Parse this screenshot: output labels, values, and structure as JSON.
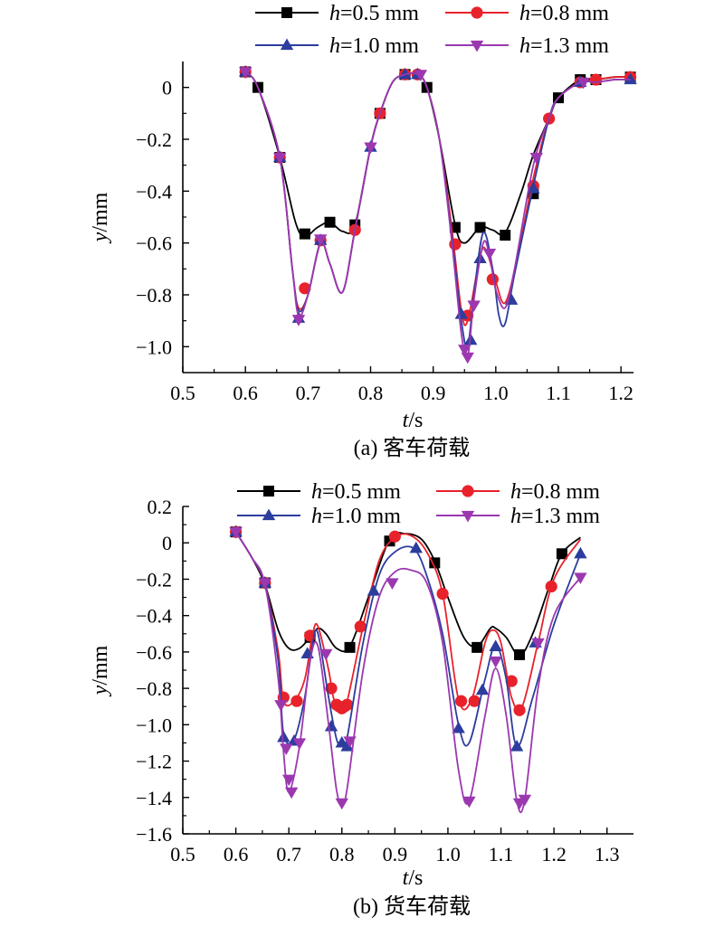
{
  "chart_data": [
    {
      "type": "line",
      "caption": "(a) 客车荷载",
      "xlabel": "t/s",
      "ylabel": "y/mm",
      "xlim": [
        0.5,
        1.22
      ],
      "ylim": [
        -1.1,
        0.1
      ],
      "x_ticks": [
        0.5,
        0.6,
        0.7,
        0.8,
        0.9,
        1.0,
        1.1,
        1.2
      ],
      "x_tick_labels": [
        "0.5",
        "0.6",
        "0.7",
        "0.8",
        "0.9",
        "1.0",
        "1.1",
        "1.2"
      ],
      "y_ticks": [
        0,
        -0.2,
        -0.4,
        -0.6,
        -0.8,
        -1.0
      ],
      "y_tick_labels": [
        "0",
        "−0.2",
        "−0.4",
        "−0.6",
        "−0.8",
        "−1.0"
      ],
      "series": [
        {
          "name": "h=0.5 mm",
          "color": "#000000",
          "marker": "square",
          "x": [
            0.6,
            0.62,
            0.655,
            0.68,
            0.695,
            0.715,
            0.735,
            0.755,
            0.775,
            0.8,
            0.815,
            0.835,
            0.855,
            0.875,
            0.89,
            0.91,
            0.935,
            0.95,
            0.975,
            0.995,
            1.015,
            1.04,
            1.06,
            1.085,
            1.1,
            1.135,
            1.16,
            1.19,
            1.215
          ],
          "y": [
            0.06,
            0.0,
            -0.27,
            -0.52,
            -0.575,
            -0.54,
            -0.52,
            -0.555,
            -0.53,
            -0.23,
            -0.1,
            0.02,
            0.05,
            0.05,
            0.0,
            -0.2,
            -0.53,
            -0.6,
            -0.54,
            -0.55,
            -0.56,
            -0.41,
            -0.26,
            -0.12,
            -0.04,
            0.03,
            0.03,
            0.04,
            0.04
          ],
          "marker_x": [
            0.6,
            0.62,
            0.655,
            0.695,
            0.735,
            0.775,
            0.815,
            0.855,
            0.89,
            0.935,
            0.975,
            1.015,
            1.06,
            1.1,
            1.135,
            1.16,
            1.215
          ],
          "marker_y": [
            0.06,
            0.0,
            -0.27,
            -0.565,
            -0.52,
            -0.53,
            -0.1,
            0.05,
            0.0,
            -0.54,
            -0.54,
            -0.57,
            -0.41,
            -0.04,
            0.03,
            0.03,
            0.04
          ]
        },
        {
          "name": "h=0.8 mm",
          "color": "#e8222b",
          "marker": "circle",
          "x": [
            0.6,
            0.62,
            0.655,
            0.675,
            0.685,
            0.7,
            0.72,
            0.735,
            0.755,
            0.775,
            0.8,
            0.815,
            0.835,
            0.855,
            0.875,
            0.89,
            0.91,
            0.93,
            0.945,
            0.955,
            0.975,
            0.985,
            1.0,
            1.015,
            1.035,
            1.06,
            1.085,
            1.1,
            1.135,
            1.16,
            1.19,
            1.215
          ],
          "y": [
            0.06,
            0.0,
            -0.27,
            -0.7,
            -0.85,
            -0.8,
            -0.6,
            -0.68,
            -0.79,
            -0.55,
            -0.23,
            -0.1,
            0.02,
            0.05,
            0.05,
            0.0,
            -0.2,
            -0.55,
            -0.86,
            -0.9,
            -0.65,
            -0.63,
            -0.75,
            -0.83,
            -0.65,
            -0.35,
            -0.12,
            -0.04,
            0.02,
            0.03,
            0.04,
            0.04
          ],
          "marker_x": [
            0.6,
            0.655,
            0.695,
            0.72,
            0.775,
            0.815,
            0.855,
            0.875,
            0.935,
            0.955,
            0.995,
            1.06,
            1.085,
            1.135,
            1.16,
            1.215
          ],
          "marker_y": [
            0.06,
            -0.27,
            -0.775,
            -0.59,
            -0.55,
            -0.1,
            0.05,
            0.05,
            -0.605,
            -0.88,
            -0.74,
            -0.38,
            -0.12,
            0.02,
            0.03,
            0.04
          ]
        },
        {
          "name": "h=1.0 mm",
          "color": "#2c3d9d",
          "marker": "triangle-up",
          "x": [
            0.6,
            0.62,
            0.655,
            0.675,
            0.685,
            0.7,
            0.72,
            0.735,
            0.755,
            0.775,
            0.8,
            0.815,
            0.835,
            0.855,
            0.875,
            0.89,
            0.91,
            0.93,
            0.945,
            0.955,
            0.965,
            0.98,
            0.995,
            1.005,
            1.015,
            1.03,
            1.06,
            1.085,
            1.1,
            1.135,
            1.16,
            1.19,
            1.215
          ],
          "y": [
            0.06,
            0.0,
            -0.27,
            -0.7,
            -0.86,
            -0.8,
            -0.6,
            -0.68,
            -0.79,
            -0.55,
            -0.23,
            -0.1,
            0.02,
            0.05,
            0.05,
            0.0,
            -0.2,
            -0.58,
            -0.9,
            -1.0,
            -0.8,
            -0.56,
            -0.7,
            -0.88,
            -0.91,
            -0.72,
            -0.38,
            -0.12,
            -0.04,
            0.02,
            0.02,
            0.03,
            0.03
          ],
          "marker_x": [
            0.6,
            0.655,
            0.685,
            0.72,
            0.8,
            0.855,
            0.875,
            0.945,
            0.96,
            0.975,
            1.025,
            1.06,
            1.135,
            1.215
          ],
          "marker_y": [
            0.06,
            -0.27,
            -0.89,
            -0.59,
            -0.23,
            0.05,
            0.05,
            -0.875,
            -0.975,
            -0.66,
            -0.82,
            -0.39,
            0.02,
            0.03
          ]
        },
        {
          "name": "h=1.3 mm",
          "color": "#9b38b0",
          "marker": "triangle-down",
          "x": [
            0.6,
            0.62,
            0.655,
            0.675,
            0.685,
            0.7,
            0.72,
            0.735,
            0.755,
            0.775,
            0.8,
            0.815,
            0.835,
            0.855,
            0.875,
            0.89,
            0.91,
            0.93,
            0.945,
            0.955,
            0.965,
            0.98,
            0.99,
            1.0,
            1.015,
            1.03,
            1.06,
            1.085,
            1.1,
            1.135,
            1.16,
            1.19,
            1.215
          ],
          "y": [
            0.06,
            0.0,
            -0.27,
            -0.7,
            -0.88,
            -0.8,
            -0.6,
            -0.68,
            -0.79,
            -0.55,
            -0.23,
            -0.1,
            0.02,
            0.05,
            0.05,
            0.0,
            -0.2,
            -0.6,
            -0.95,
            -1.04,
            -0.82,
            -0.6,
            -0.65,
            -0.78,
            -0.85,
            -0.7,
            -0.3,
            -0.12,
            -0.04,
            0.02,
            0.02,
            0.03,
            0.03
          ],
          "marker_x": [
            0.6,
            0.655,
            0.685,
            0.72,
            0.8,
            0.88,
            0.95,
            0.955,
            0.965,
            0.99,
            1.065,
            1.14
          ],
          "marker_y": [
            0.06,
            -0.27,
            -0.895,
            -0.585,
            -0.23,
            0.05,
            -1.01,
            -1.04,
            -0.84,
            -0.64,
            -0.27,
            0.02
          ]
        }
      ]
    },
    {
      "type": "line",
      "caption": "(b) 货车荷载",
      "xlabel": "t/s",
      "ylabel": "y/mm",
      "xlim": [
        0.5,
        1.35
      ],
      "ylim": [
        -1.6,
        0.2
      ],
      "x_ticks": [
        0.5,
        0.6,
        0.7,
        0.8,
        0.9,
        1.0,
        1.1,
        1.2,
        1.3
      ],
      "x_tick_labels": [
        "0.5",
        "0.6",
        "0.7",
        "0.8",
        "0.9",
        "1.0",
        "1.1",
        "1.2",
        "1.3"
      ],
      "y_ticks": [
        0.2,
        0,
        -0.2,
        -0.4,
        -0.6,
        -0.8,
        -1.0,
        -1.2,
        -1.4,
        -1.6
      ],
      "y_tick_labels": [
        "0.2",
        "0",
        "−0.2",
        "−0.4",
        "−0.6",
        "−0.8",
        "−1.0",
        "−1.2",
        "−1.4",
        "−1.6"
      ],
      "series": [
        {
          "name": "h=0.5 mm",
          "color": "#000000",
          "marker": "square",
          "x": [
            0.6,
            0.63,
            0.655,
            0.68,
            0.7,
            0.72,
            0.74,
            0.755,
            0.77,
            0.79,
            0.815,
            0.85,
            0.89,
            0.92,
            0.95,
            0.975,
            1.0,
            1.03,
            1.055,
            1.08,
            1.09,
            1.11,
            1.135,
            1.16,
            1.19,
            1.215,
            1.25
          ],
          "y": [
            0.06,
            -0.08,
            -0.23,
            -0.48,
            -0.58,
            -0.58,
            -0.52,
            -0.47,
            -0.5,
            -0.58,
            -0.57,
            -0.3,
            0.02,
            0.05,
            0.02,
            -0.1,
            -0.3,
            -0.52,
            -0.57,
            -0.47,
            -0.47,
            -0.52,
            -0.62,
            -0.5,
            -0.25,
            -0.06,
            0.03
          ],
          "marker_x": [
            0.6,
            0.655,
            0.74,
            0.815,
            0.89,
            0.975,
            1.055,
            1.135,
            1.215
          ],
          "marker_y": [
            0.06,
            -0.22,
            -0.52,
            -0.575,
            0.01,
            -0.11,
            -0.575,
            -0.615,
            -0.06
          ]
        },
        {
          "name": "h=0.8 mm",
          "color": "#e8222b",
          "marker": "circle",
          "x": [
            0.6,
            0.63,
            0.655,
            0.68,
            0.69,
            0.71,
            0.73,
            0.745,
            0.755,
            0.775,
            0.785,
            0.8,
            0.81,
            0.84,
            0.87,
            0.9,
            0.93,
            0.96,
            0.99,
            1.02,
            1.045,
            1.07,
            1.085,
            1.1,
            1.12,
            1.14,
            1.17,
            1.2,
            1.25
          ],
          "y": [
            0.06,
            -0.08,
            -0.23,
            -0.6,
            -0.87,
            -0.87,
            -0.75,
            -0.5,
            -0.46,
            -0.7,
            -0.86,
            -0.9,
            -0.87,
            -0.46,
            -0.1,
            0.03,
            0.04,
            -0.05,
            -0.28,
            -0.86,
            -0.86,
            -0.55,
            -0.48,
            -0.55,
            -0.85,
            -0.9,
            -0.55,
            -0.2,
            0.02
          ],
          "marker_x": [
            0.6,
            0.655,
            0.69,
            0.715,
            0.74,
            0.78,
            0.79,
            0.795,
            0.8,
            0.805,
            0.81,
            0.835,
            0.9,
            0.99,
            1.025,
            1.05,
            1.12,
            1.135,
            1.195
          ],
          "marker_y": [
            0.06,
            -0.22,
            -0.85,
            -0.87,
            -0.51,
            -0.8,
            -0.89,
            -0.9,
            -0.91,
            -0.9,
            -0.89,
            -0.46,
            0.035,
            -0.28,
            -0.87,
            -0.87,
            -0.76,
            -0.92,
            -0.24
          ]
        },
        {
          "name": "h=1.0 mm",
          "color": "#2c3d9d",
          "marker": "triangle-up",
          "x": [
            0.6,
            0.63,
            0.655,
            0.68,
            0.69,
            0.71,
            0.73,
            0.745,
            0.755,
            0.775,
            0.79,
            0.8,
            0.81,
            0.84,
            0.87,
            0.9,
            0.935,
            0.96,
            0.99,
            1.02,
            1.04,
            1.07,
            1.09,
            1.11,
            1.13,
            1.16,
            1.2,
            1.25
          ],
          "y": [
            0.06,
            -0.08,
            -0.23,
            -0.65,
            -1.05,
            -1.08,
            -0.85,
            -0.55,
            -0.5,
            -0.85,
            -1.08,
            -1.11,
            -1.07,
            -0.55,
            -0.18,
            -0.05,
            -0.03,
            -0.18,
            -0.5,
            -1.0,
            -1.1,
            -0.75,
            -0.56,
            -0.75,
            -1.12,
            -0.85,
            -0.45,
            -0.06
          ],
          "marker_x": [
            0.6,
            0.655,
            0.69,
            0.71,
            0.735,
            0.78,
            0.8,
            0.81,
            0.86,
            0.94,
            1.02,
            1.065,
            1.09,
            1.13,
            1.165,
            1.25
          ],
          "marker_y": [
            0.06,
            -0.22,
            -1.07,
            -1.09,
            -0.61,
            -1.01,
            -1.1,
            -1.12,
            -0.265,
            -0.03,
            -1.02,
            -0.81,
            -0.57,
            -1.12,
            -0.55,
            -0.06
          ]
        },
        {
          "name": "h=1.3 mm",
          "color": "#9b38b0",
          "marker": "triangle-down",
          "x": [
            0.6,
            0.63,
            0.655,
            0.68,
            0.69,
            0.7,
            0.72,
            0.74,
            0.755,
            0.775,
            0.79,
            0.8,
            0.81,
            0.84,
            0.87,
            0.9,
            0.93,
            0.96,
            0.99,
            1.02,
            1.04,
            1.07,
            1.09,
            1.11,
            1.13,
            1.145,
            1.17,
            1.2,
            1.25
          ],
          "y": [
            0.06,
            -0.08,
            -0.23,
            -0.75,
            -1.15,
            -1.37,
            -1.12,
            -0.65,
            -0.57,
            -1.0,
            -1.36,
            -1.43,
            -1.35,
            -0.7,
            -0.3,
            -0.16,
            -0.15,
            -0.22,
            -0.55,
            -1.25,
            -1.42,
            -0.95,
            -0.69,
            -0.95,
            -1.42,
            -1.41,
            -0.8,
            -0.4,
            -0.19
          ],
          "marker_x": [
            0.6,
            0.655,
            0.685,
            0.695,
            0.7,
            0.705,
            0.72,
            0.77,
            0.8,
            0.815,
            0.895,
            1.04,
            1.09,
            1.135,
            1.145,
            1.17,
            1.25
          ],
          "marker_y": [
            0.06,
            -0.22,
            -0.89,
            -1.13,
            -1.3,
            -1.37,
            -1.1,
            -0.61,
            -1.43,
            -1.09,
            -0.22,
            -1.42,
            -0.65,
            -1.43,
            -1.41,
            -0.55,
            -0.19
          ]
        }
      ]
    }
  ]
}
